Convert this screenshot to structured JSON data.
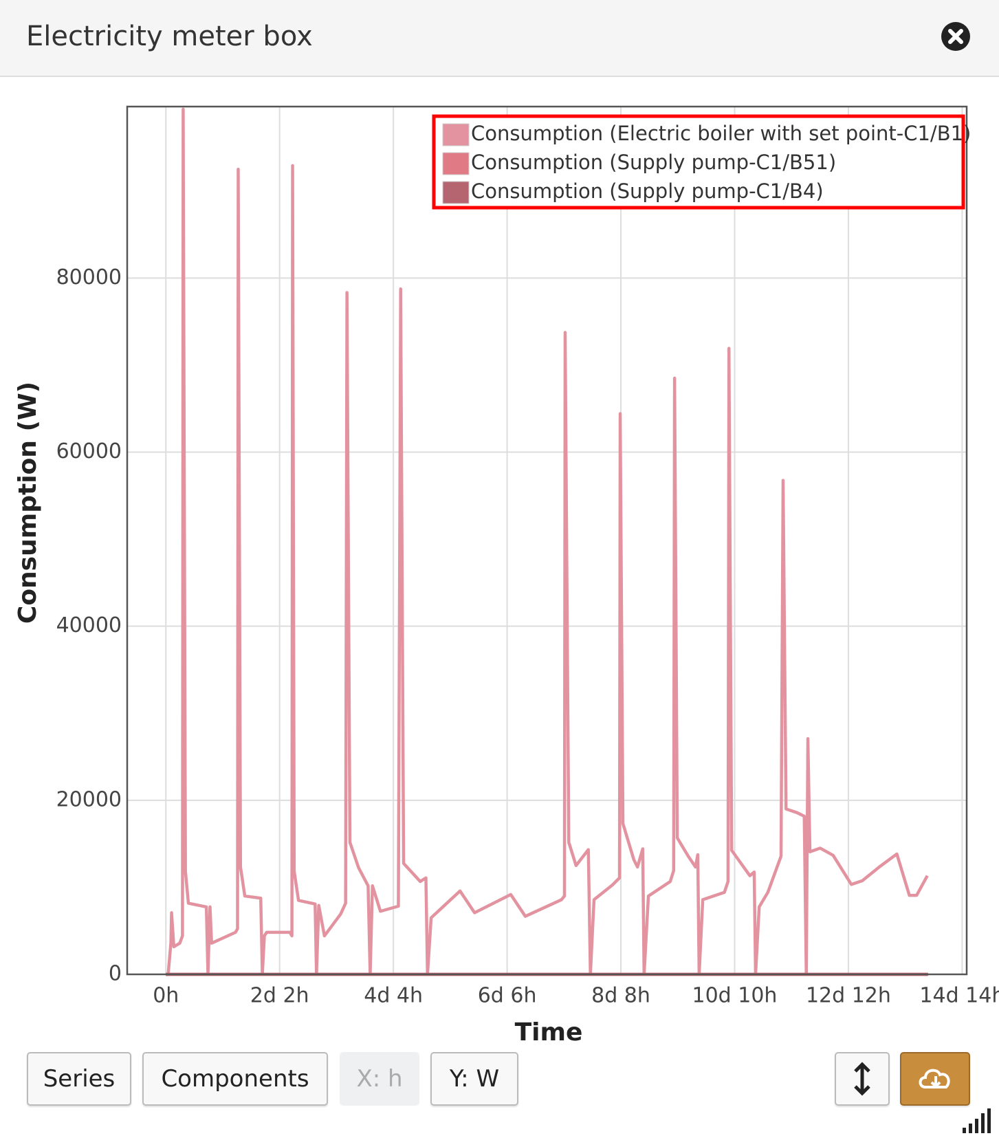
{
  "header": {
    "title": "Electricity meter box"
  },
  "chart_data": {
    "type": "line",
    "x_label": "Time",
    "y_label": "Consumption (W)",
    "xlim": [
      -17,
      352
    ],
    "ylim": [
      0,
      99700
    ],
    "xticks": [
      {
        "value": 0,
        "label": "0h"
      },
      {
        "value": 50,
        "label": "2d 2h"
      },
      {
        "value": 100,
        "label": "4d 4h"
      },
      {
        "value": 150,
        "label": "6d 6h"
      },
      {
        "value": 200,
        "label": "8d 8h"
      },
      {
        "value": 250,
        "label": "10d 10h"
      },
      {
        "value": 300,
        "label": "12d 12h"
      },
      {
        "value": 350,
        "label": "14d 14h"
      }
    ],
    "yticks": [
      0,
      20000,
      40000,
      60000,
      80000
    ],
    "grid": true,
    "legend_position": "upper right",
    "series": [
      {
        "name": "Consumption (Electric boiler with set point-C1/B1)",
        "color": "#e3939f",
        "x": [
          0,
          1.0,
          2.2,
          2.5,
          3.5,
          6.1,
          7.3,
          7.6,
          8.6,
          9.9,
          17.8,
          18.5,
          19.4,
          20.1,
          30.6,
          31.5,
          31.8,
          32.8,
          34.7,
          41.7,
          42.4,
          43.3,
          44.3,
          54.5,
          55.4,
          55.7,
          56.4,
          58.3,
          65.6,
          66.2,
          67.2,
          69.7,
          76.8,
          79.0,
          79.6,
          80.9,
          84.7,
          88.9,
          89.8,
          90.8,
          94.3,
          102.2,
          103.2,
          104.5,
          111.8,
          114.3,
          115.0,
          116.6,
          129.3,
          135.7,
          151.6,
          158.0,
          173.9,
          175.2,
          175.5,
          177.1,
          180.3,
          185.7,
          186.6,
          188.2,
          196.2,
          199.4,
          199.7,
          200.9,
          205.7,
          207.3,
          209.6,
          210.2,
          212.1,
          221.7,
          223.2,
          223.6,
          224.8,
          229.6,
          232.8,
          233.8,
          234.4,
          236.0,
          245.5,
          247.1,
          247.5,
          248.7,
          256.7,
          258.6,
          259.2,
          260.8,
          264.6,
          270.4,
          271.3,
          272.6,
          277.4,
          280.6,
          281.5,
          282.2,
          283.1,
          287.6,
          293.3,
          301.3,
          306.1,
          314.0,
          321.3,
          326.8,
          330.0,
          334.7
        ],
        "values": [
          0,
          0,
          3580,
          7080,
          3170,
          3580,
          4420,
          99400,
          11830,
          8170,
          7750,
          0,
          7750,
          3580,
          4830,
          5250,
          92500,
          12330,
          9000,
          8750,
          0,
          4420,
          4830,
          4830,
          4420,
          92920,
          11830,
          8500,
          8080,
          0,
          7920,
          4420,
          6920,
          8170,
          78330,
          15170,
          12250,
          10170,
          0,
          10170,
          7250,
          7830,
          78750,
          12750,
          10670,
          11080,
          0,
          6500,
          9580,
          7080,
          9170,
          6670,
          8580,
          9000,
          73750,
          15170,
          12500,
          14330,
          0,
          8580,
          10250,
          11080,
          64420,
          17330,
          13170,
          12330,
          14420,
          0,
          9000,
          10670,
          11920,
          68500,
          15670,
          13580,
          12330,
          13750,
          0,
          8580,
          9420,
          10670,
          71920,
          14250,
          11330,
          11750,
          0,
          7750,
          9420,
          13580,
          56750,
          19000,
          18580,
          18170,
          0,
          27080,
          14080,
          14500,
          13670,
          10330,
          10750,
          12420,
          13830,
          9080,
          9080,
          11330
        ]
      },
      {
        "name": "Consumption (Supply pump-C1/B51)",
        "color": "#e07b86",
        "x": [
          0,
          335
        ],
        "values": [
          0,
          0
        ]
      },
      {
        "name": "Consumption (Supply pump-C1/B4)",
        "color": "#b56570",
        "x": [
          0,
          335
        ],
        "values": [
          0,
          0
        ]
      }
    ]
  },
  "toolbar": {
    "buttons": [
      "Series",
      "Components",
      "X: h",
      "Y: W"
    ]
  }
}
